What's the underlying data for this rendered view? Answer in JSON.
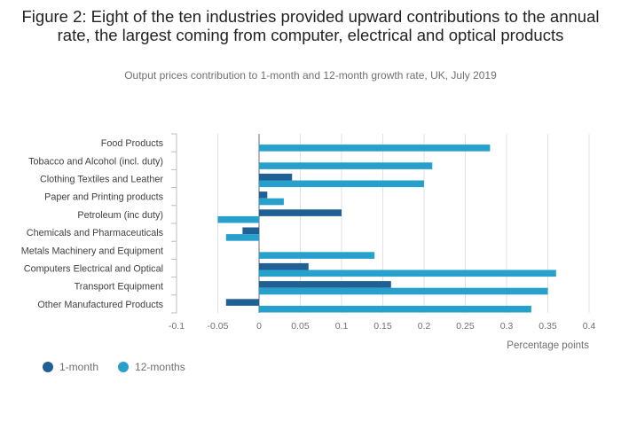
{
  "title": "Figure 2: Eight of the ten industries provided upward contributions to the annual rate, the largest coming from computer, electrical and optical products",
  "subtitle": "Output prices contribution to 1-month and 12-month growth rate, UK, July 2019",
  "colors": {
    "one_month": "#206095",
    "twelve_months": "#27a0cc",
    "grid": "#e2e2e3",
    "axis": "#bebebe"
  },
  "chart_data": {
    "type": "bar",
    "orientation": "horizontal",
    "categories": [
      "Food Products",
      "Tobacco and Alcohol (incl. duty)",
      "Clothing Textiles and Leather",
      "Paper and Printing products",
      "Petroleum (inc duty)",
      "Chemicals and Pharmaceuticals",
      "Metals Machinery and Equipment",
      "Computers Electrical and Optical",
      "Transport Equipment",
      "Other Manufactured Products"
    ],
    "series": [
      {
        "name": "1-month",
        "values": [
          0,
          0,
          0.04,
          0.01,
          0.1,
          -0.02,
          0,
          0.06,
          0.16,
          -0.04
        ]
      },
      {
        "name": "12-months",
        "values": [
          0.28,
          0.21,
          0.2,
          0.03,
          -0.05,
          -0.04,
          0.14,
          0.36,
          0.35,
          0.33
        ]
      }
    ],
    "xlabel": "Percentage points",
    "ylabel": "",
    "xlim": [
      -0.1,
      0.4
    ],
    "xticks": [
      "-0.1",
      "-0.05",
      "0",
      "0.05",
      "0.1",
      "0.15",
      "0.2",
      "0.25",
      "0.3",
      "0.35",
      "0.4"
    ],
    "grid": true,
    "legend": "bottom-left"
  }
}
